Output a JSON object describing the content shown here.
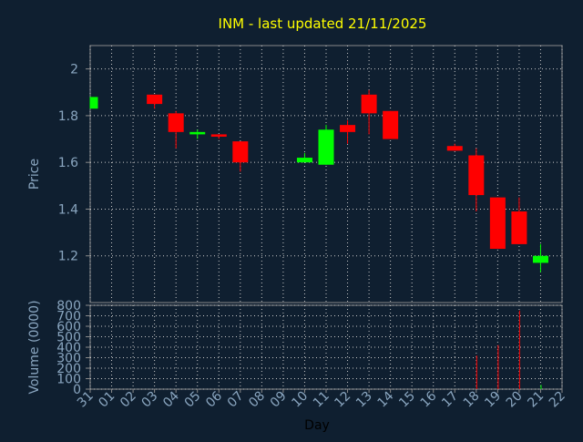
{
  "chart_data": [
    {
      "type": "candlestick",
      "title": "INM - last updated 21/11/2025",
      "xlabel": "",
      "ylabel": "Price",
      "ylim": [
        1.0,
        2.1
      ],
      "yticks": [
        "1.2",
        "1.4",
        "1.6",
        "1.8",
        "2"
      ],
      "grid": true,
      "colors": {
        "up": "#00ff00",
        "down": "#ff0000"
      },
      "candles": [
        {
          "day": "31",
          "open": 1.83,
          "high": 1.88,
          "low": 1.83,
          "close": 1.88
        },
        {
          "day": "03",
          "open": 1.89,
          "high": 1.89,
          "low": 1.83,
          "close": 1.85
        },
        {
          "day": "04",
          "open": 1.81,
          "high": 1.82,
          "low": 1.66,
          "close": 1.73
        },
        {
          "day": "05",
          "open": 1.72,
          "high": 1.74,
          "low": 1.7,
          "close": 1.73
        },
        {
          "day": "06",
          "open": 1.72,
          "high": 1.72,
          "low": 1.7,
          "close": 1.71
        },
        {
          "day": "07",
          "open": 1.69,
          "high": 1.69,
          "low": 1.56,
          "close": 1.6
        },
        {
          "day": "10",
          "open": 1.6,
          "high": 1.64,
          "low": 1.6,
          "close": 1.62
        },
        {
          "day": "11",
          "open": 1.59,
          "high": 1.76,
          "low": 1.59,
          "close": 1.74
        },
        {
          "day": "12",
          "open": 1.76,
          "high": 1.78,
          "low": 1.68,
          "close": 1.73
        },
        {
          "day": "13",
          "open": 1.89,
          "high": 1.91,
          "low": 1.72,
          "close": 1.81
        },
        {
          "day": "14",
          "open": 1.82,
          "high": 1.82,
          "low": 1.7,
          "close": 1.7
        },
        {
          "day": "17",
          "open": 1.67,
          "high": 1.68,
          "low": 1.65,
          "close": 1.65
        },
        {
          "day": "18",
          "open": 1.63,
          "high": 1.66,
          "low": 1.39,
          "close": 1.46
        },
        {
          "day": "19",
          "open": 1.45,
          "high": 1.45,
          "low": 1.23,
          "close": 1.23
        },
        {
          "day": "20",
          "open": 1.39,
          "high": 1.45,
          "low": 1.25,
          "close": 1.25
        },
        {
          "day": "21",
          "open": 1.17,
          "high": 1.25,
          "low": 1.13,
          "close": 1.2
        }
      ]
    },
    {
      "type": "bar",
      "xlabel": "Day",
      "ylabel": "Volume (0000)",
      "ylim": [
        0,
        800
      ],
      "yticks": [
        "0",
        "100",
        "200",
        "300",
        "400",
        "500",
        "600",
        "700",
        "800"
      ],
      "categories": [
        "31",
        "01",
        "02",
        "03",
        "04",
        "05",
        "06",
        "07",
        "08",
        "09",
        "10",
        "11",
        "12",
        "13",
        "14",
        "15",
        "16",
        "17",
        "18",
        "19",
        "20",
        "21",
        "22"
      ],
      "grid": true,
      "volumes": [
        {
          "day": "18",
          "value": 320,
          "color": "#ff0000"
        },
        {
          "day": "19",
          "value": 420,
          "color": "#ff0000"
        },
        {
          "day": "20",
          "value": 750,
          "color": "#ff0000"
        },
        {
          "day": "21",
          "value": 40,
          "color": "#00ff00"
        }
      ]
    }
  ]
}
